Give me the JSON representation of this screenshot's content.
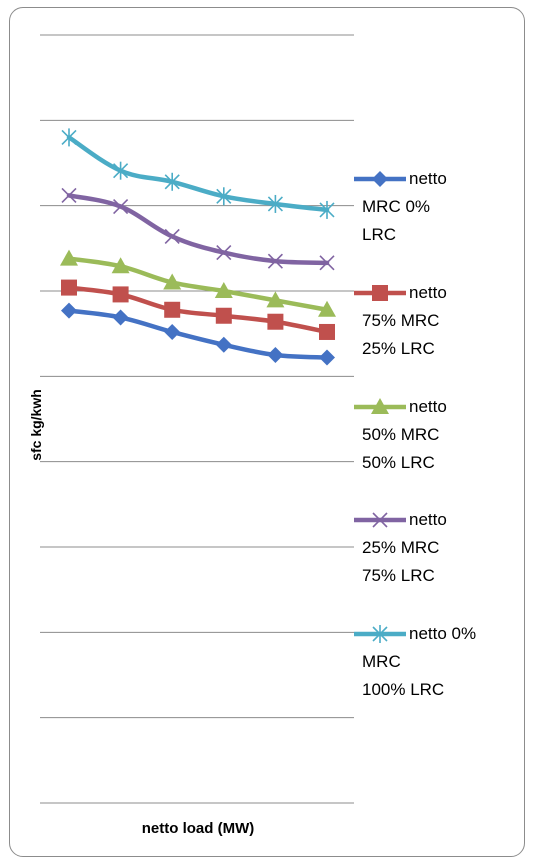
{
  "chart_data": {
    "type": "line",
    "xlabel": "netto load (MW)",
    "ylabel": "sfc kg/kwh",
    "x": [
      1,
      2,
      3,
      4,
      5,
      6
    ],
    "ylim": [
      0,
      9
    ],
    "grid": true,
    "legend_position": "right",
    "series": [
      {
        "name": "netto\nMRC 0%\nLRC",
        "color": "#4472C4",
        "marker": "diamond",
        "values": [
          5.77,
          5.69,
          5.52,
          5.37,
          5.25,
          5.22
        ]
      },
      {
        "name": "netto\n75% MRC\n25% LRC",
        "color": "#C0504D",
        "marker": "square",
        "values": [
          6.04,
          5.96,
          5.78,
          5.71,
          5.64,
          5.52
        ]
      },
      {
        "name": "netto\n50% MRC\n50% LRC",
        "color": "#9BBB59",
        "marker": "triangle",
        "values": [
          6.38,
          6.29,
          6.1,
          6.0,
          5.89,
          5.78
        ]
      },
      {
        "name": "netto\n25% MRC\n75% LRC",
        "color": "#8064A2",
        "marker": "x",
        "values": [
          7.12,
          6.99,
          6.64,
          6.45,
          6.35,
          6.33
        ]
      },
      {
        "name": "netto  0%\nMRC\n100% LRC",
        "color": "#4BACC6",
        "marker": "star",
        "values": [
          7.8,
          7.41,
          7.28,
          7.11,
          7.02,
          6.95
        ]
      }
    ]
  }
}
